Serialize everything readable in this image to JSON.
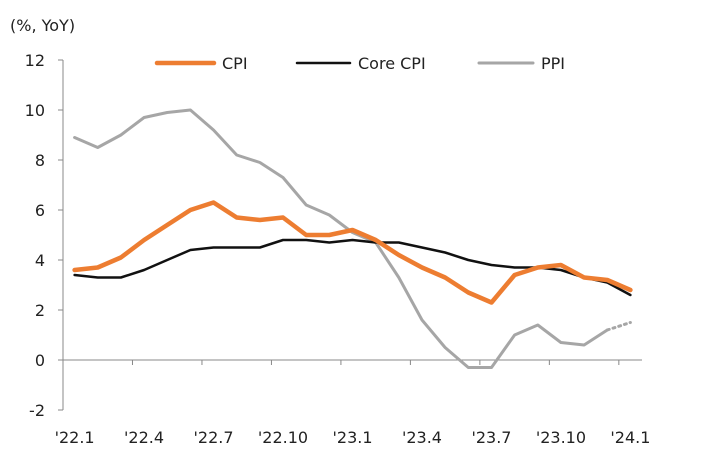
{
  "chart_data": {
    "type": "line",
    "unit_label": "(%, YoY)",
    "x": [
      "'22.1",
      "'22.2",
      "'22.3",
      "'22.4",
      "'22.5",
      "'22.6",
      "'22.7",
      "'22.8",
      "'22.9",
      "'22.10",
      "'22.11",
      "'22.12",
      "'23.1",
      "'23.2",
      "'23.3",
      "'23.4",
      "'23.5",
      "'23.6",
      "'23.7",
      "'23.8",
      "'23.9",
      "'23.10",
      "'23.11",
      "'23.12",
      "'24.1"
    ],
    "x_tick_labels": [
      "'22.1",
      "'22.4",
      "'22.7",
      "'22.10",
      "'23.1",
      "'23.4",
      "'23.7",
      "'23.10",
      "'24.1"
    ],
    "x_tick_indices": [
      0,
      3,
      6,
      9,
      12,
      15,
      18,
      21,
      24
    ],
    "ylim": [
      -2,
      12
    ],
    "yticks": [
      -2,
      0,
      2,
      4,
      6,
      8,
      10,
      12
    ],
    "legend_position": "top",
    "grid": false,
    "series": [
      {
        "name": "CPI",
        "color": "#ED7D31",
        "values": [
          3.6,
          3.7,
          4.1,
          4.8,
          5.4,
          6.0,
          6.3,
          5.7,
          5.6,
          5.7,
          5.0,
          5.0,
          5.2,
          4.8,
          4.2,
          3.7,
          3.3,
          2.7,
          2.3,
          3.4,
          3.7,
          3.8,
          3.3,
          3.2,
          2.8
        ]
      },
      {
        "name": "Core CPI",
        "color": "#111111",
        "values": [
          3.4,
          3.3,
          3.3,
          3.6,
          4.0,
          4.4,
          4.5,
          4.5,
          4.5,
          4.8,
          4.8,
          4.7,
          4.8,
          4.7,
          4.7,
          4.5,
          4.3,
          4.0,
          3.8,
          3.7,
          3.7,
          3.6,
          3.3,
          3.1,
          2.6
        ]
      },
      {
        "name": "PPI",
        "color": "#A6A6A6",
        "values": [
          8.9,
          8.5,
          9.0,
          9.7,
          9.9,
          10.0,
          9.2,
          8.2,
          7.9,
          7.3,
          6.2,
          5.8,
          5.1,
          4.7,
          3.3,
          1.6,
          0.5,
          -0.3,
          -0.3,
          1.0,
          1.4,
          0.7,
          0.6,
          1.2,
          1.5
        ],
        "dotted_from_index": 23
      }
    ]
  }
}
